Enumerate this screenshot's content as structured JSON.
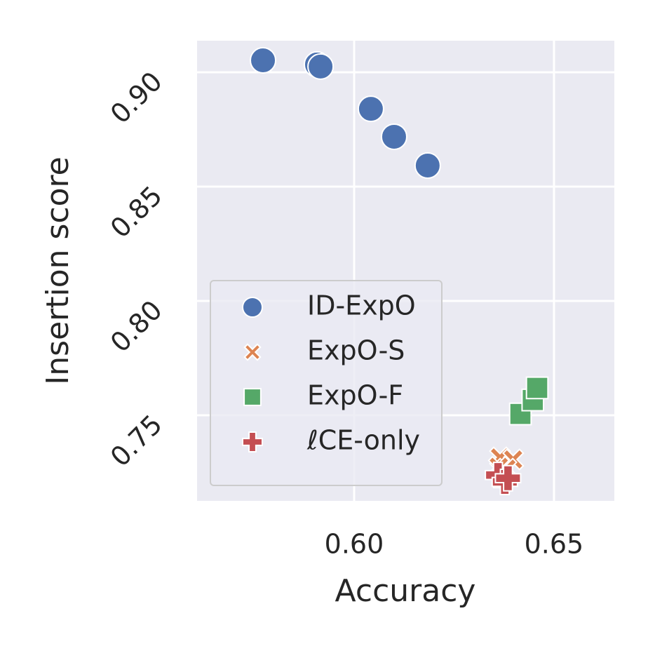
{
  "chart_data": {
    "type": "scatter",
    "xlabel": "Accuracy",
    "ylabel": "Insertion score",
    "xlim": [
      0.5607,
      0.6651
    ],
    "ylim": [
      0.7126,
      0.9138
    ],
    "xticks": [
      {
        "value": 0.6,
        "label": "0.60"
      },
      {
        "value": 0.65,
        "label": "0.65"
      }
    ],
    "yticks": [
      0.75,
      {
        "value": 0.8,
        "label": "0.80"
      },
      0.85,
      {
        "value": 0.9,
        "label": "0.90"
      }
    ],
    "grid": true,
    "legend": "lower left",
    "series": [
      {
        "name": "ID-ExpO",
        "color": "#4c72b0",
        "marker": "circle",
        "x": [
          0.5772,
          0.5907,
          0.5916,
          0.6042,
          0.61,
          0.6184
        ],
        "values": [
          0.9052,
          0.9034,
          0.9025,
          0.884,
          0.8718,
          0.8592
        ]
      },
      {
        "name": "ExpO-S",
        "color": "#dd8452",
        "marker": "x",
        "x": [
          0.6365,
          0.6398,
          0.6381,
          0.6362
        ],
        "values": [
          0.7316,
          0.7307,
          0.7267,
          0.7275
        ]
      },
      {
        "name": "ExpO-F",
        "color": "#55a868",
        "marker": "square",
        "x": [
          0.6416,
          0.6447,
          0.6458
        ],
        "values": [
          0.7506,
          0.7567,
          0.762
        ]
      },
      {
        "name": "ℓCE-only",
        "color": "#c44e52",
        "marker": "plus",
        "x": [
          0.636,
          0.6377,
          0.6385
        ],
        "values": [
          0.7239,
          0.7209,
          0.7225
        ]
      }
    ]
  }
}
